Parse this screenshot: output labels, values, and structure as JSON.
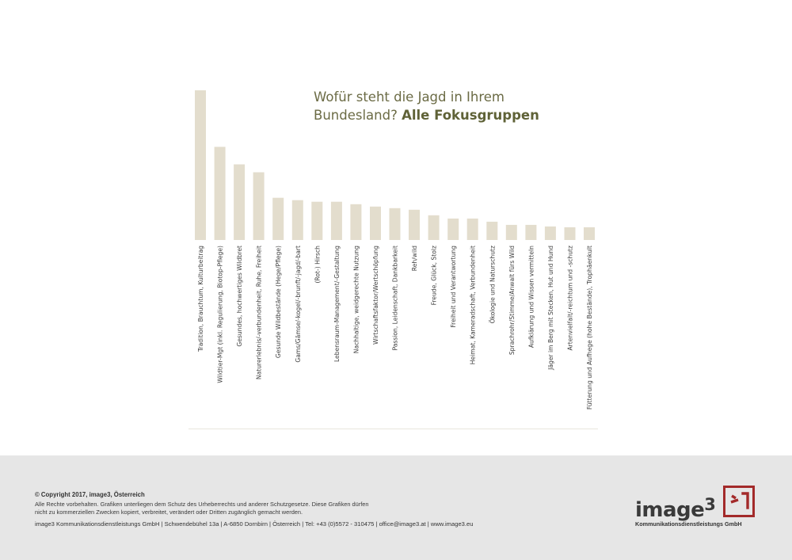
{
  "chart_data": {
    "type": "bar",
    "title": "Wofür steht die Jagd in Ihrem Bundesland?",
    "title_bold": "Alle Fokusgruppen",
    "categories": [
      "Tradition, Brauchtum, Kulturbeitrag",
      "Wildtier-Mgt (inkl. Regulierung, Biotop-Pflege)",
      "Gesundes, hochwertiges Wildbret",
      "Naturerlebnis/-verbundenheit, Ruhe, Freiheit",
      "Gesunde Wildbestände (Hege/Pflege)",
      "Gams/Gämse/-kogel/-brunft/-jagd/-bart",
      "(Rot-) Hirsch",
      "Lebensraum-Management/-Gestaltung",
      "Nachhaltige, weidgerechte Nutzung",
      "Wirtschaftsfaktor/Wertschöpfung",
      "Passion, Leidenschaft, Dankbarkeit",
      "Reh/wild",
      "Freude, Glück, Stolz",
      "Freiheit und Verantwortung",
      "Heimat, Kameradschaft, Verbundenheit",
      "Ökologie und Naturschutz",
      "Sprachrohr/Stimme/Anwalt fürs Wild",
      "Aufklärung und Wissen vermitteln",
      "Jäger im Berg mit Stecken, Hut und Hund",
      "Artenvielfalt/-reichtum und -schutz",
      "Fütterung und Aufhege (hohe Bestände), Trophäenkult"
    ],
    "values": [
      188,
      117,
      95,
      85,
      53,
      50,
      48,
      48,
      45,
      42,
      40,
      38,
      31,
      27,
      27,
      23,
      19,
      19,
      17,
      16,
      16
    ],
    "ylim": [
      0,
      188
    ],
    "bar_color": "#e3ddcd",
    "grid": false
  },
  "footer": {
    "copyright": "© Copyright 2017, image3, Österreich",
    "rights": "Alle Rechte vorbehalten. Grafiken unterliegen dem Schutz des Urheberrechts und anderer Schutzgesetze. Diese Grafiken dürfen nicht zu kommerziellen Zwecken kopiert, verbreitet, verändert oder Dritten zugänglich gemacht werden.",
    "contact": "image3 Kommunikationsdienstleistungs GmbH | Schwendebühel 13a | A-6850 Dornbirn | Österreich | Tel: +43 (0)5572 - 310475 | office@image3.at | www.image3.eu",
    "logo_word": "image",
    "logo_sup": "3",
    "logo_sub": "Kommunikationsdienstleistungs GmbH",
    "logo_color": "#a32a2a"
  }
}
